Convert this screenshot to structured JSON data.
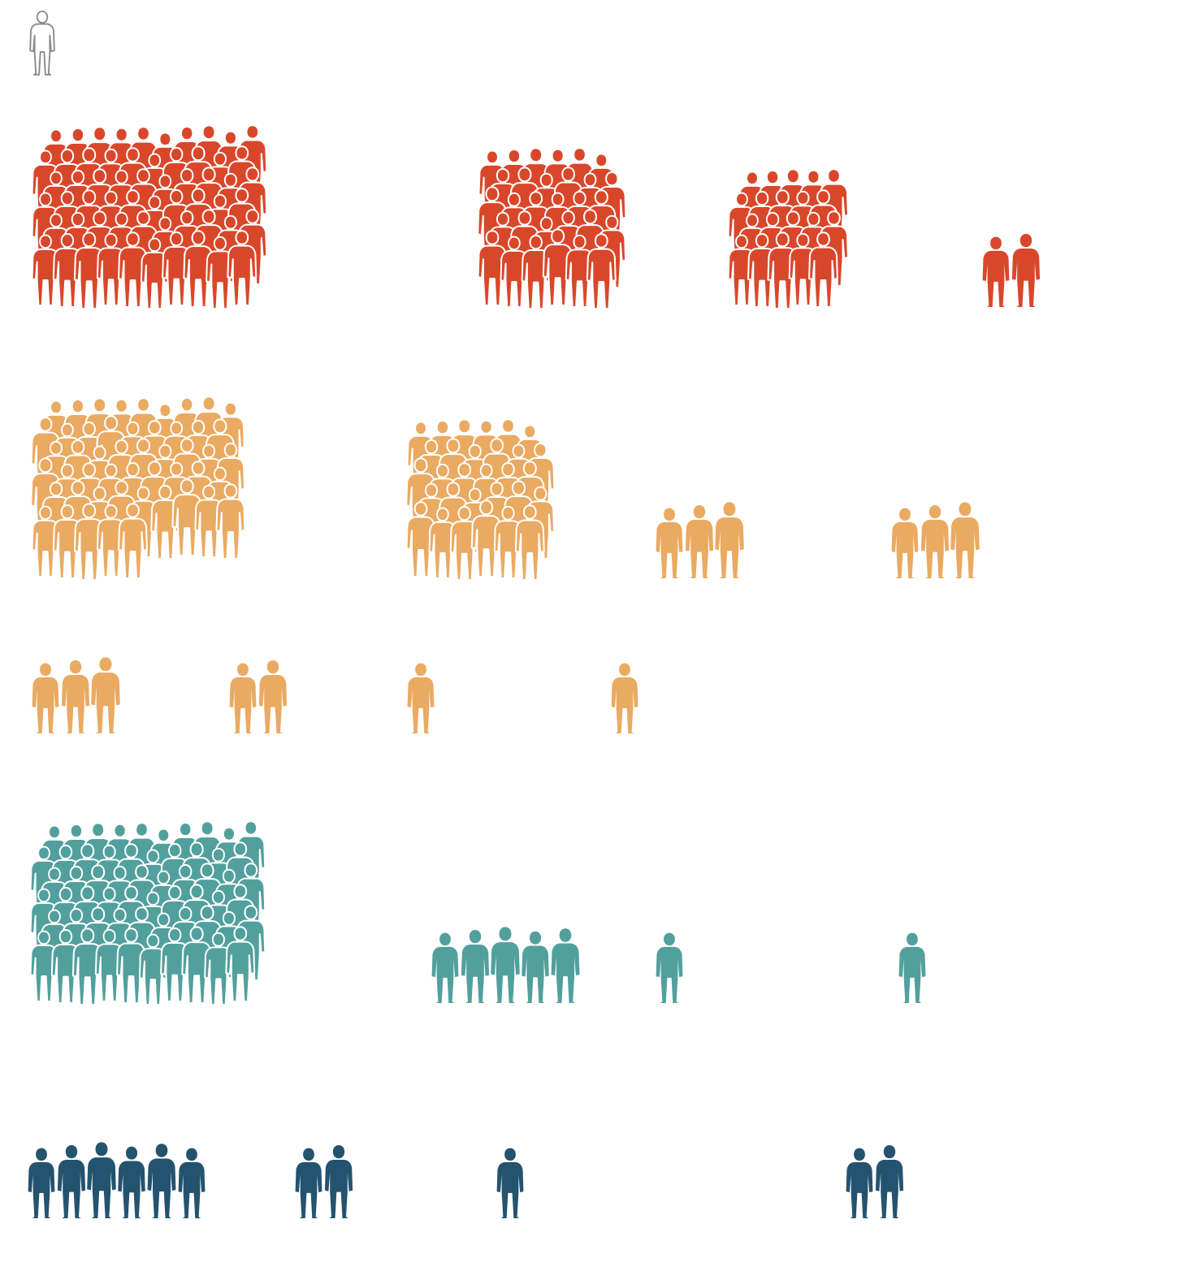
{
  "legend": {
    "icon": "person-outline-icon",
    "stroke": "#8a8a8a"
  },
  "colors": {
    "red": "#d9472b",
    "orange": "#eaaa62",
    "teal": "#52a09d",
    "navy": "#24536f",
    "outline": "#ffffff"
  },
  "chart_data": {
    "type": "pictogram",
    "unit_icon": "person-icon",
    "title": "",
    "xlabel": "",
    "ylabel": "",
    "grid": false,
    "rows": [
      {
        "color_key": "red",
        "groups": [
          60,
          30,
          20,
          2
        ]
      },
      {
        "color_key": "orange",
        "groups": [
          50,
          30,
          3,
          3
        ]
      },
      {
        "color_key": "orange",
        "groups": [
          3,
          2,
          1,
          1
        ]
      },
      {
        "color_key": "teal",
        "groups": [
          60,
          5,
          1,
          1
        ]
      },
      {
        "color_key": "navy",
        "groups": [
          6,
          2,
          1,
          2
        ]
      }
    ]
  }
}
